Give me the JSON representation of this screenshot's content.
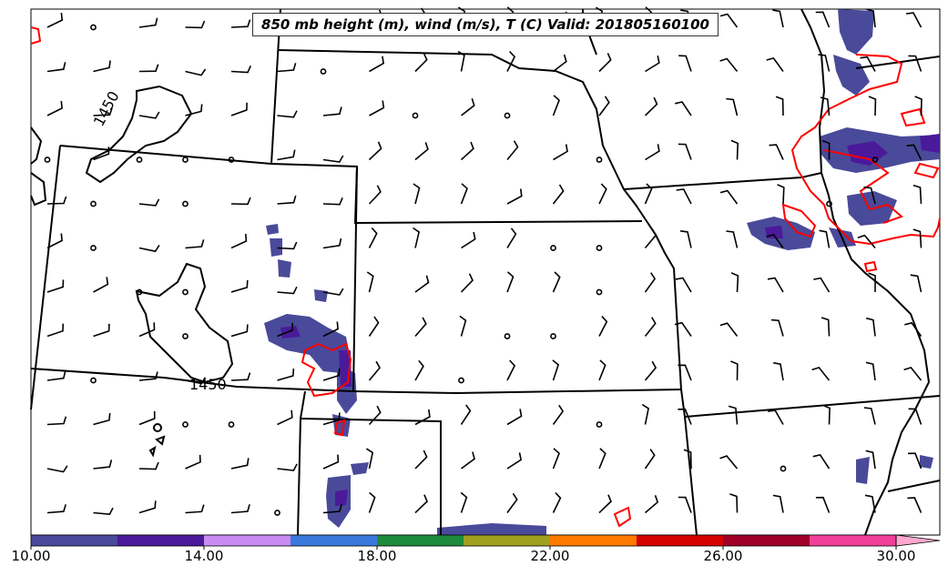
{
  "title": "850 mb height (m), wind (m/s), T (C) Valid: 201805160100",
  "contour_labels": [
    "1450",
    "1450"
  ],
  "colorbar": {
    "tick_labels": [
      "10.00",
      "14.00",
      "18.00",
      "22.00",
      "26.00",
      "30.00"
    ],
    "min": 10,
    "max": 30,
    "step": 2,
    "colors": [
      "#4a4a9a",
      "#4a1a9a",
      "#c88cf0",
      "#3a78dc",
      "#1e8a3c",
      "#a0a020",
      "#ff7800",
      "#d20000",
      "#a00028",
      "#f0409a",
      "#ffa8d0"
    ]
  },
  "legend_colors": {
    "height_contour": "#000000",
    "temperature_contour": "#ff0000",
    "wind_barb": "#000000"
  }
}
